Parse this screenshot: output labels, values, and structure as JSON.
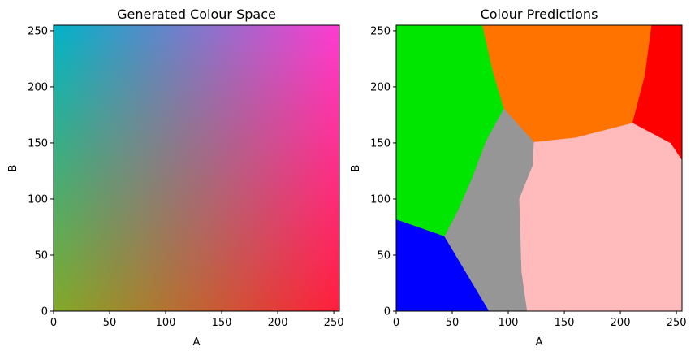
{
  "chart_data": [
    {
      "type": "heatmap",
      "title": "Generated Colour Space",
      "xlabel": "A",
      "ylabel": "B",
      "xlim": [
        0,
        255
      ],
      "ylim": [
        255,
        0
      ],
      "x_ticks": [
        0,
        50,
        100,
        150,
        200,
        250
      ],
      "y_ticks": [
        0,
        50,
        100,
        150,
        200,
        250
      ],
      "corner_colors": {
        "A0_B0": "#00b4c8",
        "A255_B0": "#ff3cd2",
        "A0_B255": "#82aa28",
        "A255_B255": "#ff1e3c"
      }
    },
    {
      "type": "heatmap",
      "title": "Colour Predictions",
      "xlabel": "A",
      "ylabel": "B",
      "xlim": [
        0,
        255
      ],
      "ylim": [
        255,
        0
      ],
      "x_ticks": [
        0,
        50,
        100,
        150,
        200,
        250
      ],
      "y_ticks": [
        0,
        50,
        100,
        150,
        200,
        250
      ],
      "regions": [
        {
          "class": "blue",
          "color": "#0000ff",
          "polygon": [
            [
              0,
              0
            ],
            [
              83,
              0
            ],
            [
              43,
              67
            ],
            [
              0,
              82
            ]
          ]
        },
        {
          "class": "grey",
          "color": "#969696",
          "polygon": [
            [
              83,
              0
            ],
            [
              117,
              0
            ],
            [
              112,
              35
            ],
            [
              110,
              100
            ],
            [
              122,
              130
            ],
            [
              123,
              151
            ],
            [
              96,
              181
            ],
            [
              80,
              152
            ],
            [
              68,
              120
            ],
            [
              55,
              90
            ],
            [
              43,
              67
            ]
          ]
        },
        {
          "class": "pink",
          "color": "#ffbbbb",
          "polygon": [
            [
              117,
              0
            ],
            [
              255,
              0
            ],
            [
              255,
              135
            ],
            [
              245,
              150
            ],
            [
              211,
              168
            ],
            [
              160,
              155
            ],
            [
              123,
              151
            ],
            [
              122,
              130
            ],
            [
              110,
              100
            ],
            [
              112,
              35
            ]
          ]
        },
        {
          "class": "green",
          "color": "#00e600",
          "polygon": [
            [
              0,
              82
            ],
            [
              43,
              67
            ],
            [
              55,
              90
            ],
            [
              68,
              120
            ],
            [
              80,
              152
            ],
            [
              96,
              181
            ],
            [
              86,
              215
            ],
            [
              77,
              255
            ],
            [
              0,
              255
            ]
          ]
        },
        {
          "class": "orange",
          "color": "#ff7300",
          "polygon": [
            [
              96,
              181
            ],
            [
              123,
              151
            ],
            [
              160,
              155
            ],
            [
              211,
              168
            ],
            [
              222,
              210
            ],
            [
              228,
              255
            ],
            [
              77,
              255
            ],
            [
              86,
              215
            ]
          ]
        },
        {
          "class": "red",
          "color": "#ff0000",
          "polygon": [
            [
              211,
              168
            ],
            [
              245,
              150
            ],
            [
              255,
              135
            ],
            [
              255,
              255
            ],
            [
              228,
              255
            ],
            [
              222,
              210
            ]
          ]
        }
      ]
    }
  ]
}
